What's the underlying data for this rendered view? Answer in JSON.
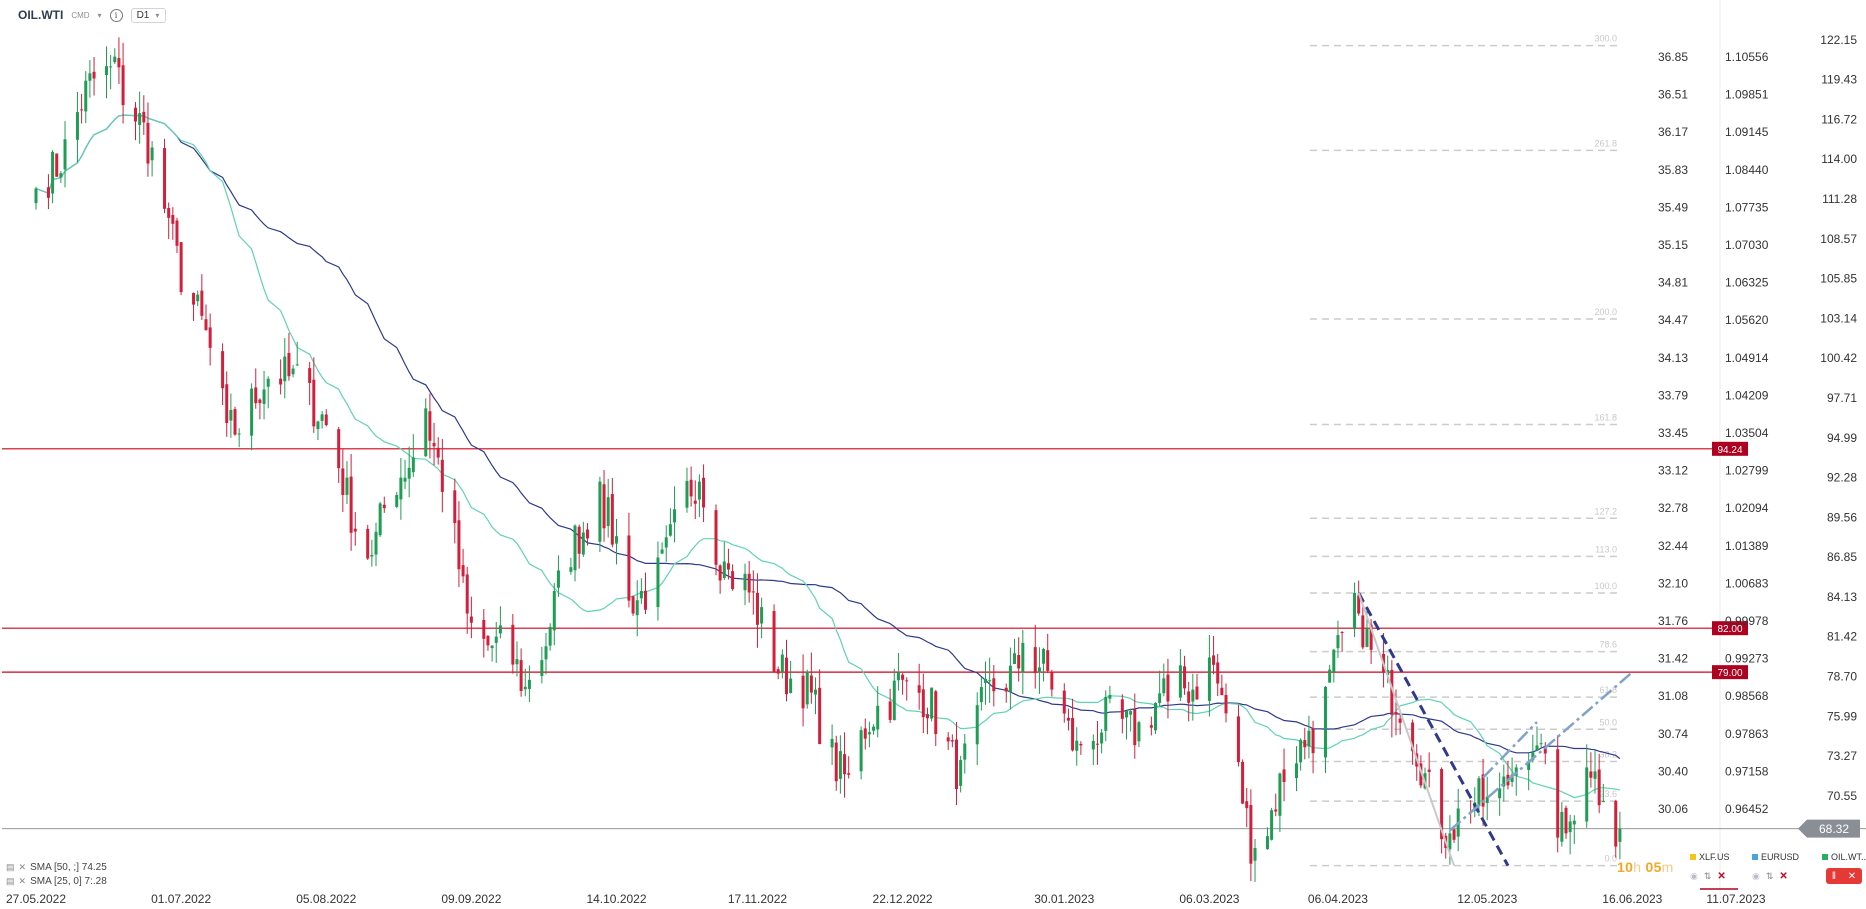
{
  "header": {
    "symbol": "OIL.WTI",
    "category": "CMD",
    "timeframe": "D1"
  },
  "legend": {
    "sma50": {
      "label": "SMA [50, ;] 74.25",
      "color": "#2e3a8c"
    },
    "sma25": {
      "label": "SMA [25, 0] 7:.28",
      "color": "#5fd3b3"
    }
  },
  "countdown": {
    "hours": "10",
    "h_unit": "h",
    "minutes": "05",
    "m_unit": "m"
  },
  "compare": [
    {
      "symbol": "XLF.US",
      "color": "#f5c518"
    },
    {
      "symbol": "EURUSD",
      "color": "#4aa3df"
    },
    {
      "symbol": "OIL.WT..",
      "color": "#27ae60"
    }
  ],
  "chart_data": {
    "type": "candlestick",
    "ylim": [
      65.5,
      123.5
    ],
    "colors": {
      "up": "#1f9d55",
      "down": "#d21f3c",
      "sma50": "#2e3a8c",
      "sma25": "#5fd3b3",
      "level": "#d0021b",
      "fib": "#cccccc",
      "trend": "#2e3a8c",
      "channel": "#7fa3c9"
    },
    "x_ticks": [
      "27.05.2022",
      "01.07.2022",
      "05.08.2022",
      "09.09.2022",
      "14.10.2022",
      "17.11.2022",
      "22.12.2022",
      "30.01.2023",
      "06.03.2023",
      "06.04.2023",
      "12.05.2023",
      "16.06.2023",
      "11.07.2023"
    ],
    "price_axis": [
      "122.15",
      "119.43",
      "116.72",
      "114.00",
      "111.28",
      "108.57",
      "105.85",
      "103.14",
      "100.42",
      "97.71",
      "94.99",
      "92.28",
      "89.56",
      "86.85",
      "84.13",
      "81.42",
      "78.70",
      "75.99",
      "73.27",
      "70.55"
    ],
    "price_axis_values": [
      122.15,
      119.43,
      116.72,
      114.0,
      111.28,
      108.57,
      105.85,
      103.14,
      100.42,
      97.71,
      94.99,
      92.28,
      89.56,
      86.85,
      84.13,
      81.42,
      78.7,
      75.99,
      73.27,
      70.55
    ],
    "compare_axis_1": [
      "36.85",
      "36.51",
      "36.17",
      "35.83",
      "35.49",
      "35.15",
      "34.81",
      "34.47",
      "34.13",
      "33.79",
      "33.45",
      "33.12",
      "32.78",
      "32.44",
      "32.10",
      "31.76",
      "31.42",
      "31.08",
      "30.74",
      "30.40",
      "30.06"
    ],
    "compare_axis_2": [
      "1.10556",
      "1.09851",
      "1.09145",
      "1.08440",
      "1.07735",
      "1.07030",
      "1.06325",
      "1.05620",
      "1.04914",
      "1.04209",
      "1.03504",
      "1.02799",
      "1.02094",
      "1.01389",
      "1.00683",
      "0.99978",
      "0.99273",
      "0.98568",
      "0.97863",
      "0.97158",
      "0.96452"
    ],
    "current_price": {
      "label": "68.32",
      "value": 68.32
    },
    "horizontal_levels": [
      {
        "label": "94.24",
        "value": 94.24
      },
      {
        "label": "82.00",
        "value": 82.0
      },
      {
        "label": "79.00",
        "value": 79.0
      }
    ],
    "fibonacci": [
      {
        "label": "300.0",
        "value": 121.75
      },
      {
        "label": "261.8",
        "value": 114.6
      },
      {
        "label": "200.0",
        "value": 103.1
      },
      {
        "label": "161.8",
        "value": 95.9
      },
      {
        "label": "127.2",
        "value": 89.5
      },
      {
        "label": "113.0",
        "value": 86.9
      },
      {
        "label": "100.0",
        "value": 84.4
      },
      {
        "label": "78.6",
        "value": 80.4
      },
      {
        "label": "61.8",
        "value": 77.3
      },
      {
        "label": "50.0",
        "value": 75.1
      },
      {
        "label": "38.2",
        "value": 72.9
      },
      {
        "label": "23.6",
        "value": 70.2
      },
      {
        "label": "0.0",
        "value": 65.8
      }
    ],
    "anchors": [
      {
        "date": "27.05.2022",
        "price": 112
      },
      {
        "date": "15.06.2022",
        "price": 121
      },
      {
        "date": "28.06.2022",
        "price": 110
      },
      {
        "date": "12.07.2022",
        "price": 96
      },
      {
        "date": "29.07.2022",
        "price": 100
      },
      {
        "date": "16.08.2022",
        "price": 87
      },
      {
        "date": "29.08.2022",
        "price": 97
      },
      {
        "date": "08.09.2022",
        "price": 83
      },
      {
        "date": "22.09.2022",
        "price": 78
      },
      {
        "date": "10.10.2022",
        "price": 92
      },
      {
        "date": "18.10.2022",
        "price": 83
      },
      {
        "date": "03.11.2022",
        "price": 92
      },
      {
        "date": "10.11.2022",
        "price": 86
      },
      {
        "date": "09.12.2022",
        "price": 72
      },
      {
        "date": "21.12.2022",
        "price": 79
      },
      {
        "date": "05.01.2023",
        "price": 73
      },
      {
        "date": "20.01.2023",
        "price": 81
      },
      {
        "date": "03.02.2023",
        "price": 74
      },
      {
        "date": "24.02.2023",
        "price": 77
      },
      {
        "date": "06.03.2023",
        "price": 80
      },
      {
        "date": "17.03.2023",
        "price": 67
      },
      {
        "date": "30.03.2023",
        "price": 75
      },
      {
        "date": "11.04.2023",
        "price": 83
      },
      {
        "date": "03.05.2023",
        "price": 68
      },
      {
        "date": "12.05.2023",
        "price": 70.5
      },
      {
        "date": "19.05.2023",
        "price": 72.5
      },
      {
        "date": "24.05.2023",
        "price": 74
      },
      {
        "date": "31.05.2023",
        "price": 68
      },
      {
        "date": "05.06.2023",
        "price": 72.5
      },
      {
        "date": "09.06.2023",
        "price": 70.2
      },
      {
        "date": "12.06.2023",
        "price": 67.1
      },
      {
        "date": "13.06.2023",
        "price": 68.32
      }
    ],
    "trendlines": [
      {
        "kind": "trend",
        "from": {
          "date": "11.04.2023",
          "price": 84.4
        },
        "to": {
          "date": "17.05.2023",
          "price": 65.8
        }
      },
      {
        "kind": "fib-leg",
        "from": {
          "date": "11.04.2023",
          "price": 84.4
        },
        "to": {
          "date": "04.05.2023",
          "price": 65.8
        }
      },
      {
        "kind": "channel",
        "from": {
          "date": "03.05.2023",
          "price": 68.2
        },
        "to": {
          "date": "16.06.2023",
          "price": 79.0
        }
      },
      {
        "kind": "channel",
        "from": {
          "date": "11.05.2023",
          "price": 71.8
        },
        "to": {
          "date": "24.05.2023",
          "price": 75.6
        }
      }
    ]
  }
}
